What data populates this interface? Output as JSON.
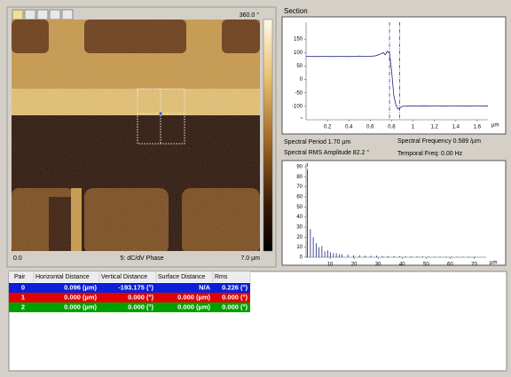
{
  "image": {
    "scale_max": "360.0 °",
    "origin": "0.0",
    "channel": "5: dC/dV Phase",
    "size": "7.0 µm"
  },
  "section_label": "Section",
  "spectral_info": {
    "period": "Spectral Period 1.70 µm",
    "frequency": "Spectral Frequency 0.589 /µm",
    "rms_amplitude": "Spectral RMS Amplitude 82.2 °",
    "temporal": "Temporal Freq: 0.00 Hz"
  },
  "chart_data": [
    {
      "type": "line",
      "color": "#1a237e",
      "x": [
        0,
        0.05,
        0.1,
        0.15,
        0.2,
        0.25,
        0.3,
        0.35,
        0.4,
        0.45,
        0.5,
        0.55,
        0.6,
        0.65,
        0.7,
        0.72,
        0.74,
        0.76,
        0.78,
        0.8,
        0.82,
        0.84,
        0.86,
        0.9,
        0.95,
        1.0,
        1.1,
        1.2,
        1.3,
        1.4,
        1.5,
        1.6,
        1.7
      ],
      "values": [
        86,
        86,
        85,
        86,
        86,
        85,
        86,
        86,
        85,
        86,
        87,
        86,
        86,
        88,
        95,
        100,
        92,
        105,
        98,
        30,
        -60,
        -95,
        -110,
        -100,
        -99,
        -98,
        -99,
        -98,
        -99,
        -98,
        -99,
        -98,
        -99
      ],
      "cursors": [
        0.78,
        0.876
      ],
      "xlim": [
        0,
        1.7
      ],
      "ylim": [
        -150,
        200
      ],
      "xticks": [
        0.2,
        0.4,
        0.6,
        0.8,
        1,
        1.2,
        1.4,
        1.6
      ],
      "yticks": [
        -100,
        -50,
        0,
        50,
        100,
        150
      ],
      "x_unit": "µm",
      "y_unit": "°"
    },
    {
      "type": "bar",
      "color": "#1a237e",
      "x": [
        0.6,
        1.8,
        3.0,
        4.2,
        5.4,
        6.6,
        7.8,
        9.0,
        10.2,
        11.4,
        12.6,
        13.8,
        15.0,
        17.4,
        19.8,
        22.2,
        24.6,
        27.0,
        29.4,
        31.8,
        34.2,
        36.6,
        39.0,
        41.4,
        43.8,
        46.2,
        48.6,
        51.0,
        53.4,
        55.8,
        58.2,
        60.6,
        63.0,
        65.4,
        67.8,
        70.2
      ],
      "values": [
        87,
        28,
        20,
        14,
        10,
        11,
        6,
        7,
        5,
        4,
        4,
        3,
        3,
        2.5,
        2,
        2,
        1.5,
        1.5,
        1.5,
        1.2,
        1.2,
        1,
        1,
        0.8,
        0.8,
        0.8,
        0.7,
        0.7,
        0.6,
        0.6,
        0.6,
        0.5,
        0.5,
        0.5,
        0.5,
        0.5
      ],
      "cursors": [
        0.6
      ],
      "xlim": [
        0,
        75
      ],
      "ylim": [
        0,
        90
      ],
      "xticks": [
        10,
        20,
        30,
        40,
        50,
        60,
        70
      ],
      "yticks": [
        0,
        10,
        20,
        30,
        40,
        50,
        60,
        70,
        80,
        90
      ],
      "x_unit": "µm"
    }
  ],
  "table": {
    "header": [
      "Pair",
      "Horizontal Distance",
      "Vertical Distance",
      "Surface Distance",
      "Rms"
    ],
    "rows": [
      [
        "0",
        "0.096 (µm)",
        "-193.175 (°)",
        "N/A",
        "0.226 (°)"
      ],
      [
        "1",
        "0.000 (µm)",
        "0.000 (°)",
        "0.000 (µm)",
        "0.000 (°)"
      ],
      [
        "2",
        "0.000 (µm)",
        "0.000 (°)",
        "0.000 (µm)",
        "0.000 (°)"
      ]
    ],
    "row_colors": [
      "#0b1fd8",
      "#e00000",
      "#00a000"
    ]
  }
}
